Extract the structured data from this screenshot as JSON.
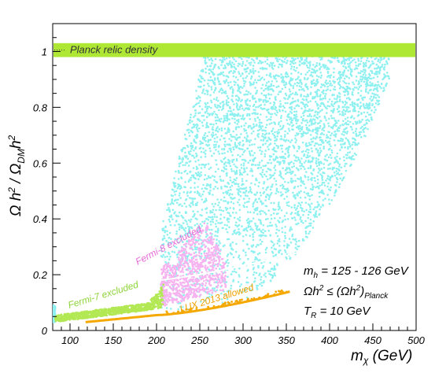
{
  "chart_data": {
    "type": "scatter",
    "xlabel": "m_χ (GeV)",
    "ylabel": "Ω h² / Ω_DM h²",
    "xlim": [
      80,
      500
    ],
    "ylim": [
      0,
      1.1
    ],
    "x_ticks": [
      100,
      150,
      200,
      250,
      300,
      350,
      400,
      450,
      500
    ],
    "y_ticks": [
      0,
      0.2,
      0.4,
      0.6,
      0.8,
      1
    ],
    "planck_band": {
      "label": "Planck relic density",
      "ymin": 0.98,
      "ymax": 1.03,
      "color": "#aee835"
    },
    "annotations": {
      "mass_range": "m_h = 125 - 126 GeV",
      "relic_condition": "Ωh² ≤ (Ωh²)_Planck",
      "reheating": "T_R = 10 GeV"
    },
    "series": [
      {
        "name": "Fermi-7 excluded",
        "color": "#b2e853",
        "region": {
          "x": [
            80,
            200
          ],
          "y_lower": [
            0.045,
            0.09
          ],
          "y_upper": [
            0.09,
            0.15
          ]
        }
      },
      {
        "name": "Fermi-8 excluded",
        "color": "#f7b2f0",
        "region": {
          "x": [
            200,
            280
          ],
          "y_lower": [
            0.1,
            0.15
          ],
          "y_upper": [
            0.21,
            0.4
          ]
        }
      },
      {
        "name": "LUX 2013 allowed",
        "color": "#f5a800",
        "curve": [
          [
            120,
            0.03
          ],
          [
            200,
            0.055
          ],
          [
            280,
            0.1
          ],
          [
            350,
            0.14
          ]
        ]
      },
      {
        "name": "",
        "color": "#8ff0f0",
        "region": {
          "x": [
            80,
            470
          ],
          "y_lower_min": 0.04,
          "y_upper": 1.0
        }
      }
    ]
  }
}
